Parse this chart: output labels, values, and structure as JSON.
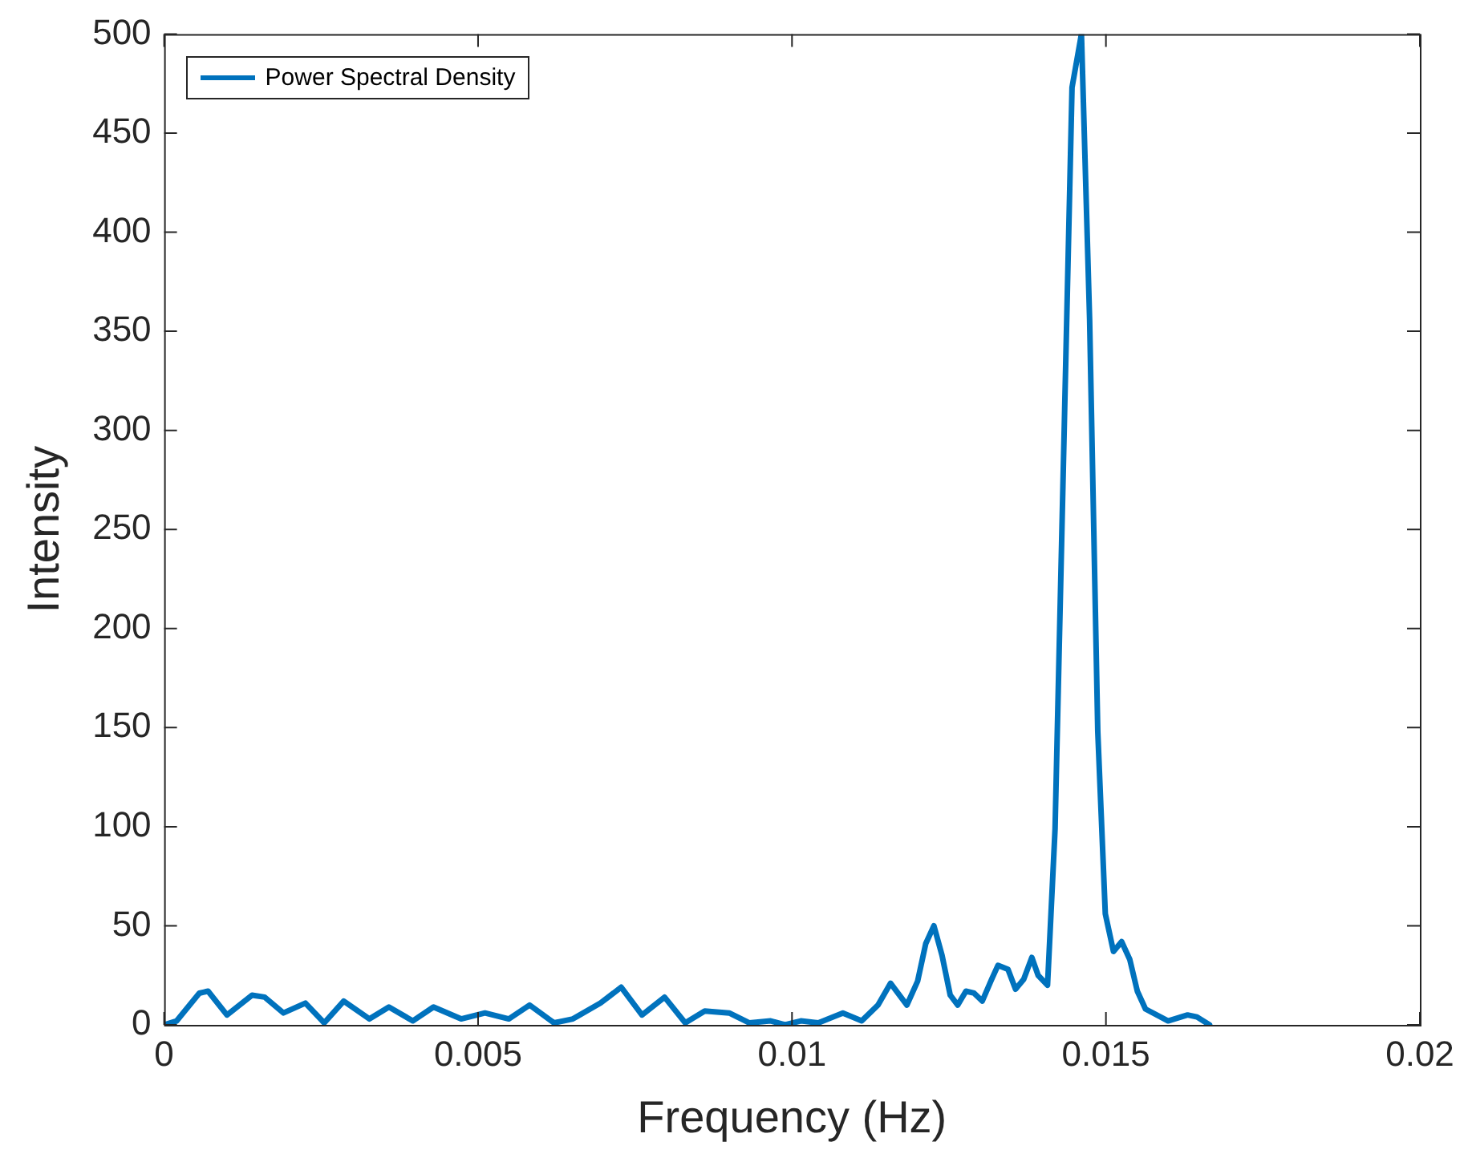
{
  "chart_data": {
    "type": "line",
    "xlabel": "Frequency (Hz)",
    "ylabel": "Intensity",
    "x": [
      0,
      0.0002,
      0.00056,
      0.0007,
      0.001,
      0.0014,
      0.0016,
      0.0019,
      0.00225,
      0.00255,
      0.00286,
      0.00327,
      0.00358,
      0.00396,
      0.00429,
      0.00473,
      0.00511,
      0.00549,
      0.00582,
      0.00621,
      0.00651,
      0.00695,
      0.00728,
      0.00761,
      0.00797,
      0.0083,
      0.00861,
      0.009,
      0.00932,
      0.00966,
      0.00989,
      0.01014,
      0.01042,
      0.01081,
      0.01111,
      0.01137,
      0.01157,
      0.01183,
      0.012,
      0.01213,
      0.01226,
      0.01239,
      0.01252,
      0.01264,
      0.01277,
      0.0129,
      0.01303,
      0.01318,
      0.01328,
      0.01344,
      0.01356,
      0.01369,
      0.01382,
      0.01392,
      0.01407,
      0.01419,
      0.01446,
      0.01461,
      0.01474,
      0.01487,
      0.01499,
      0.01512,
      0.01525,
      0.01538,
      0.0155,
      0.01563,
      0.01599,
      0.0163,
      0.01645,
      0.01665
    ],
    "series": [
      {
        "name": "Power Spectral Density",
        "color": "#0072bd",
        "values": [
          0,
          2,
          16,
          17,
          5,
          15,
          14,
          6,
          11,
          1,
          12,
          3,
          9,
          2,
          9,
          3,
          6,
          3,
          10,
          1,
          3,
          11,
          19,
          5,
          14,
          1,
          7,
          6,
          1,
          2,
          0,
          2,
          1,
          6,
          2,
          10,
          21,
          10,
          22,
          41,
          50,
          35,
          15,
          10,
          17,
          16,
          12,
          23,
          30,
          28,
          18,
          23,
          34,
          25,
          20,
          99,
          473,
          500,
          356,
          148,
          56,
          37,
          42,
          33,
          17,
          8,
          2,
          5,
          4,
          0
        ]
      }
    ],
    "xlim": [
      0,
      0.02
    ],
    "xticks": [
      0,
      0.005,
      0.01,
      0.015,
      0.02
    ],
    "ylim": [
      0,
      500
    ],
    "yticks": [
      0,
      50,
      100,
      150,
      200,
      250,
      300,
      350,
      400,
      450,
      500
    ],
    "grid": false,
    "legend": "top left",
    "marker": "none",
    "line_style": "solid"
  }
}
